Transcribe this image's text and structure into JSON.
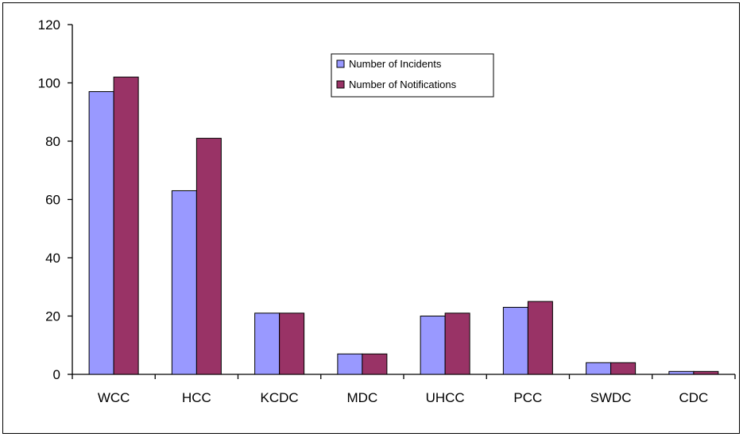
{
  "chart_data": {
    "type": "bar",
    "title": "",
    "xlabel": "",
    "ylabel": "",
    "categories": [
      "WCC",
      "HCC",
      "KCDC",
      "MDC",
      "UHCC",
      "PCC",
      "SWDC",
      "CDC"
    ],
    "series": [
      {
        "name": "Number of Incidents",
        "color": "#9999FF",
        "values": [
          97,
          63,
          21,
          7,
          20,
          23,
          4,
          1
        ]
      },
      {
        "name": "Number of Notifications",
        "color": "#993366",
        "values": [
          102,
          81,
          21,
          7,
          21,
          25,
          4,
          1
        ]
      }
    ],
    "ylim": [
      0,
      120
    ],
    "yticks": [
      0,
      20,
      40,
      60,
      80,
      100,
      120
    ],
    "grid": false,
    "legend_position": "top-right"
  }
}
